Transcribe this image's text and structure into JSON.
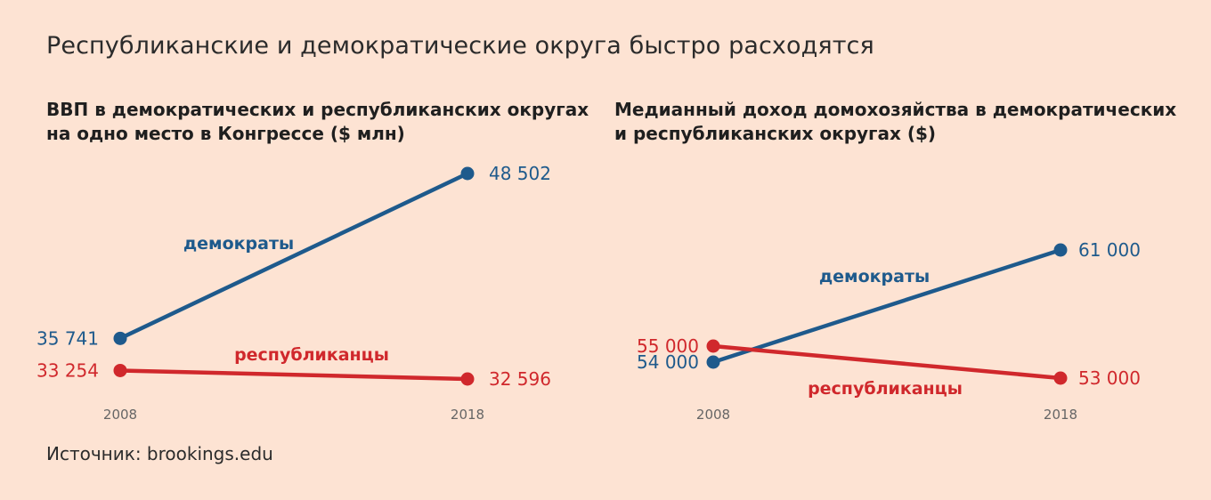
{
  "title": "Республиканские и демократические округа быстро расходятся",
  "source": "Источник: brookings.edu",
  "colors": {
    "dem": "#1e5a8c",
    "rep": "#d0282c",
    "background": "#fde3d3",
    "tick": "#666666"
  },
  "chart_data": [
    {
      "type": "line",
      "title_lines": [
        "ВВП в демократических и республиканских округах",
        "на одно место в Конгрессе ($ млн)"
      ],
      "x": [
        "2008",
        "2018"
      ],
      "series": [
        {
          "name": "демократы",
          "values": [
            35741,
            48502
          ],
          "labels": [
            "35 741",
            "48 502"
          ],
          "color": "#1e5a8c"
        },
        {
          "name": "республиканцы",
          "values": [
            33254,
            32596
          ],
          "labels": [
            "33 254",
            "32 596"
          ],
          "color": "#d0282c"
        }
      ]
    },
    {
      "type": "line",
      "title_lines": [
        "Медианный доход домохозяйства в демократических",
        "и республиканских округах ($)"
      ],
      "x": [
        "2008",
        "2018"
      ],
      "series": [
        {
          "name": "демократы",
          "values": [
            54000,
            61000
          ],
          "labels": [
            "54 000",
            "61 000"
          ],
          "color": "#1e5a8c"
        },
        {
          "name": "республиканцы",
          "values": [
            55000,
            53000
          ],
          "labels": [
            "55 000",
            "53 000"
          ],
          "color": "#d0282c"
        }
      ]
    }
  ]
}
